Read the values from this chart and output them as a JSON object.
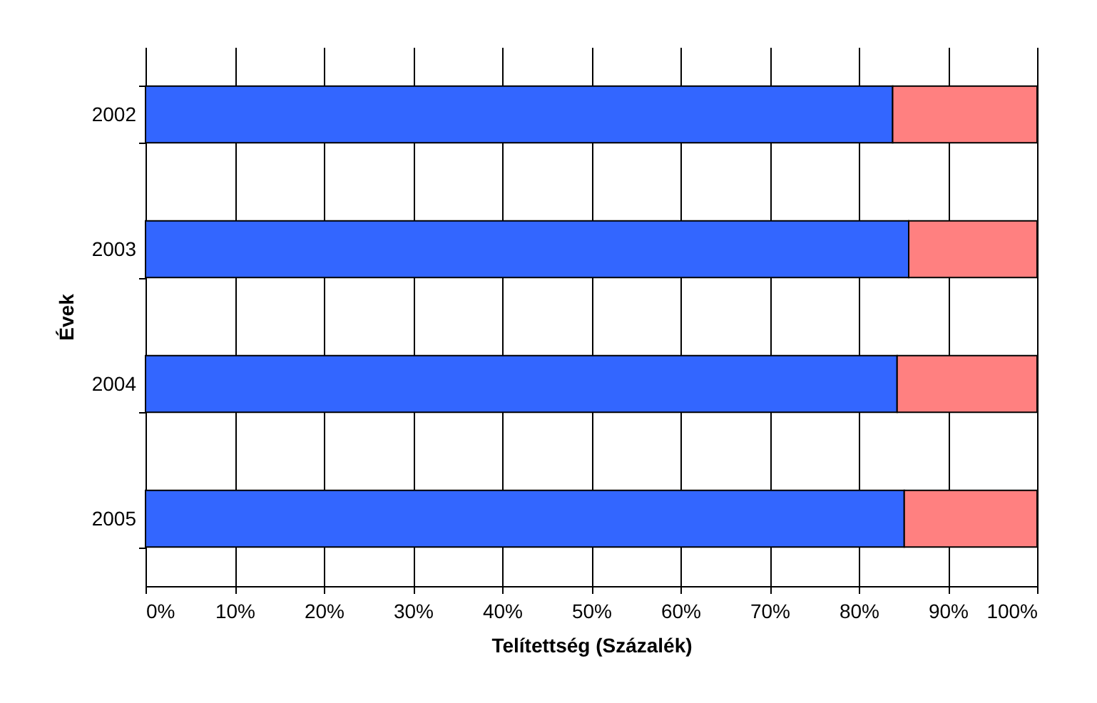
{
  "chart_data": {
    "type": "bar",
    "orientation": "horizontal",
    "stacked": true,
    "xlabel": "Telítettség (Százalék)",
    "ylabel": "Évek",
    "categories": [
      "2002",
      "2003",
      "2004",
      "2005"
    ],
    "series": [
      {
        "color": "#3366ff",
        "values": [
          83.8,
          85.6,
          84.3,
          85.1
        ]
      },
      {
        "color": "#ff8080",
        "values": [
          16.2,
          14.4,
          15.7,
          14.9
        ]
      }
    ],
    "xlim": [
      0,
      100
    ],
    "xticks": [
      {
        "value": 0,
        "label": "0%"
      },
      {
        "value": 10,
        "label": "10%"
      },
      {
        "value": 20,
        "label": "20%"
      },
      {
        "value": 30,
        "label": "30%"
      },
      {
        "value": 40,
        "label": "40%"
      },
      {
        "value": 50,
        "label": "50%"
      },
      {
        "value": 60,
        "label": "60%"
      },
      {
        "value": 70,
        "label": "70%"
      },
      {
        "value": 80,
        "label": "80%"
      },
      {
        "value": 90,
        "label": "90%"
      },
      {
        "value": 100,
        "label": "100%"
      }
    ],
    "grid": "x",
    "legend": false
  }
}
